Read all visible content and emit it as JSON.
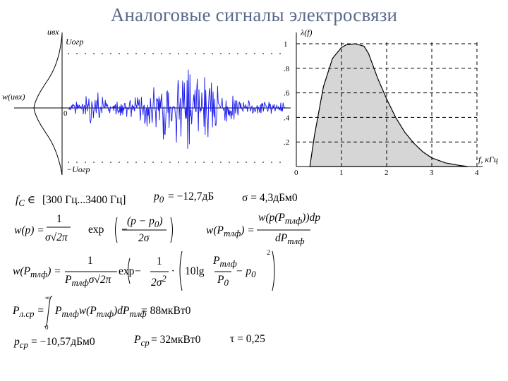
{
  "slide": {
    "title": "Аналоговые сигналы электросвязи"
  },
  "waveform_plot": {
    "y_axis_label": "uвх",
    "upper_limit_label": "Uогр",
    "lower_limit_label": "−Uогр",
    "density_label": "w(uвх)",
    "origin_label": "0"
  },
  "chart_data": {
    "type": "area",
    "title": "",
    "xlabel": "f, кГц",
    "ylabel": "λ(f)",
    "x_ticks": [
      "0",
      "1",
      "2",
      "3",
      "4"
    ],
    "y_ticks": [
      ".2",
      ".4",
      ".6",
      ".8",
      "1"
    ],
    "xlim": [
      0,
      4
    ],
    "ylim": [
      0,
      1
    ],
    "grid": true,
    "x": [
      0.3,
      0.4,
      0.6,
      0.8,
      1.0,
      1.1,
      1.3,
      1.5,
      1.6,
      1.8,
      2.0,
      2.2,
      2.4,
      2.6,
      2.8,
      3.0,
      3.3,
      3.6,
      3.8
    ],
    "y": [
      0.0,
      0.25,
      0.65,
      0.88,
      0.97,
      0.99,
      1.0,
      0.98,
      0.92,
      0.72,
      0.55,
      0.4,
      0.28,
      0.19,
      0.12,
      0.07,
      0.03,
      0.01,
      0.0
    ]
  },
  "formulas": {
    "band": "[300 Гц...3400 Гц]",
    "p0": "= −12,7дБ",
    "sigma": "σ = 4,3дБм0",
    "res_p0": "= 88мкВт0",
    "res_p": "= −10,57дБм0",
    "res_pcp": "= 32мкВт0",
    "tau": "τ = 0,25"
  }
}
